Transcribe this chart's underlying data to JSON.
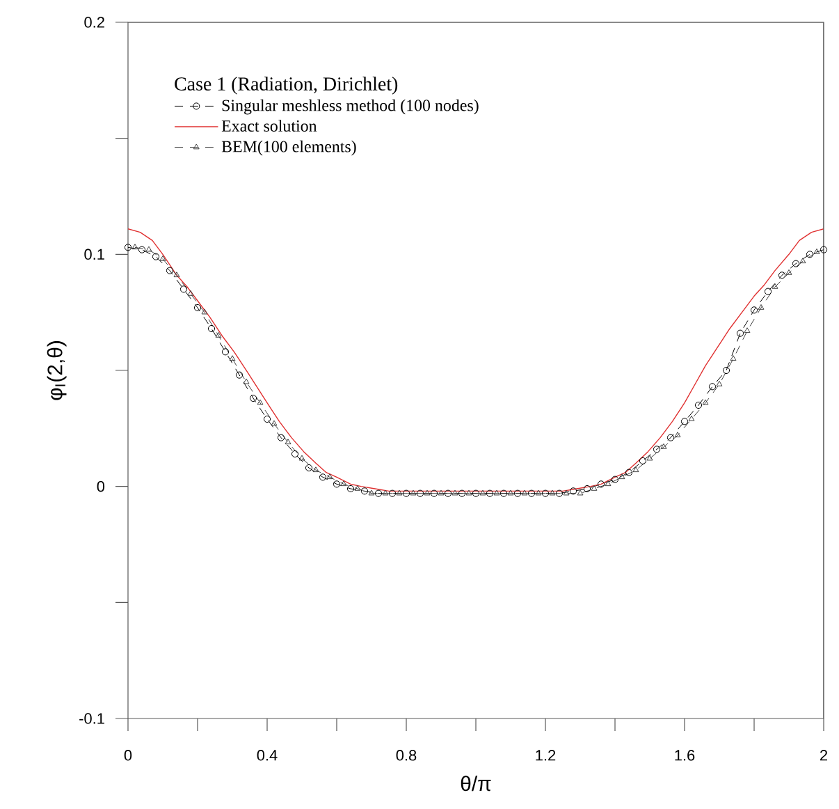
{
  "chart_data": {
    "type": "line",
    "xlabel": "θ/π",
    "ylabel": "φ$_{I}$(2,θ)",
    "legend_title": "Case 1 (Radiation, Dirichlet)",
    "xlim": [
      0,
      2
    ],
    "ylim": [
      -0.1,
      0.2
    ],
    "xticks": [
      0,
      {
        "value": 0.2,
        "label": null
      },
      0.4,
      {
        "value": 0.6,
        "label": null
      },
      0.8,
      {
        "value": 1.0,
        "label": null
      },
      1.2,
      {
        "value": 1.4,
        "label": null
      },
      1.6,
      {
        "value": 1.8,
        "label": null
      },
      2
    ],
    "yticks": [
      -0.1,
      {
        "value": -0.05,
        "label": null
      },
      0,
      {
        "value": 0.05,
        "label": null
      },
      0.1,
      {
        "value": 0.15,
        "label": null
      },
      0.2
    ],
    "legend": "top left",
    "series": [
      {
        "name": "Singular meshless method (100 nodes)",
        "color": "#000000",
        "marker": "circle",
        "line_style": "dashed",
        "x": [
          0,
          0.04,
          0.08,
          0.12,
          0.16,
          0.2,
          0.24,
          0.28,
          0.32,
          0.36,
          0.4,
          0.44,
          0.48,
          0.52,
          0.56,
          0.6,
          0.64,
          0.68,
          0.72,
          0.76,
          0.8,
          0.84,
          0.88,
          0.92,
          0.96,
          1.0,
          1.04,
          1.08,
          1.12,
          1.16,
          1.2,
          1.24,
          1.28,
          1.32,
          1.36,
          1.4,
          1.44,
          1.48,
          1.52,
          1.56,
          1.6,
          1.64,
          1.68,
          1.72,
          1.76,
          1.8,
          1.84,
          1.88,
          1.92,
          1.96,
          2
        ],
        "values": [
          0.103,
          0.102,
          0.099,
          0.093,
          0.085,
          0.077,
          0.068,
          0.058,
          0.048,
          0.038,
          0.029,
          0.021,
          0.014,
          0.008,
          0.004,
          0.001,
          -0.001,
          -0.002,
          -0.003,
          -0.003,
          -0.003,
          -0.003,
          -0.003,
          -0.003,
          -0.003,
          -0.003,
          -0.003,
          -0.003,
          -0.003,
          -0.003,
          -0.003,
          -0.003,
          -0.002,
          -0.001,
          0.001,
          0.003,
          0.006,
          0.011,
          0.016,
          0.021,
          0.028,
          0.035,
          0.043,
          0.05,
          0.066,
          0.076,
          0.084,
          0.091,
          0.096,
          0.1,
          0.102
        ]
      },
      {
        "name": "Exact solution",
        "color": "#e03030",
        "marker": "none",
        "line_style": "solid",
        "x": [
          0,
          0.035,
          0.07,
          0.1,
          0.14,
          0.17,
          0.2,
          0.235,
          0.27,
          0.305,
          0.34,
          0.37,
          0.4,
          0.435,
          0.47,
          0.505,
          0.54,
          0.57,
          0.6,
          0.64,
          0.67,
          0.71,
          0.75,
          1.0,
          1.25,
          1.29,
          1.33,
          1.36,
          1.4,
          1.43,
          1.46,
          1.495,
          1.53,
          1.565,
          1.6,
          1.63,
          1.66,
          1.695,
          1.73,
          1.765,
          1.8,
          1.83,
          1.86,
          1.9,
          1.93,
          1.965,
          2
        ],
        "values": [
          0.111,
          0.1095,
          0.106,
          0.1,
          0.091,
          0.086,
          0.08,
          0.073,
          0.065,
          0.058,
          0.05,
          0.043,
          0.036,
          0.028,
          0.021,
          0.015,
          0.01,
          0.006,
          0.004,
          0.001,
          0.0,
          -0.001,
          -0.002,
          -0.002,
          -0.002,
          -0.001,
          0.0,
          0.001,
          0.004,
          0.006,
          0.01,
          0.015,
          0.021,
          0.028,
          0.036,
          0.044,
          0.052,
          0.06,
          0.068,
          0.075,
          0.082,
          0.087,
          0.093,
          0.1,
          0.106,
          0.1095,
          0.111
        ]
      },
      {
        "name": "BEM(100 elements)",
        "color": "#404040",
        "marker": "triangle",
        "line_style": "dashed",
        "x": [
          0.02,
          0.06,
          0.1,
          0.14,
          0.18,
          0.22,
          0.26,
          0.3,
          0.34,
          0.38,
          0.42,
          0.46,
          0.5,
          0.54,
          0.58,
          0.62,
          0.66,
          0.7,
          0.74,
          0.78,
          0.82,
          0.86,
          0.9,
          0.94,
          0.98,
          1.02,
          1.06,
          1.1,
          1.14,
          1.18,
          1.22,
          1.26,
          1.3,
          1.34,
          1.38,
          1.42,
          1.46,
          1.5,
          1.54,
          1.58,
          1.62,
          1.66,
          1.7,
          1.74,
          1.78,
          1.82,
          1.86,
          1.9,
          1.94,
          1.98
        ],
        "values": [
          0.103,
          0.102,
          0.098,
          0.091,
          0.083,
          0.075,
          0.065,
          0.055,
          0.045,
          0.036,
          0.027,
          0.019,
          0.012,
          0.007,
          0.004,
          0.001,
          -0.001,
          -0.003,
          -0.003,
          -0.003,
          -0.003,
          -0.003,
          -0.003,
          -0.003,
          -0.003,
          -0.003,
          -0.003,
          -0.003,
          -0.003,
          -0.003,
          -0.003,
          -0.003,
          -0.003,
          -0.001,
          0.001,
          0.004,
          0.007,
          0.012,
          0.017,
          0.022,
          0.029,
          0.036,
          0.044,
          0.055,
          0.067,
          0.077,
          0.086,
          0.092,
          0.097,
          0.101
        ]
      }
    ]
  }
}
